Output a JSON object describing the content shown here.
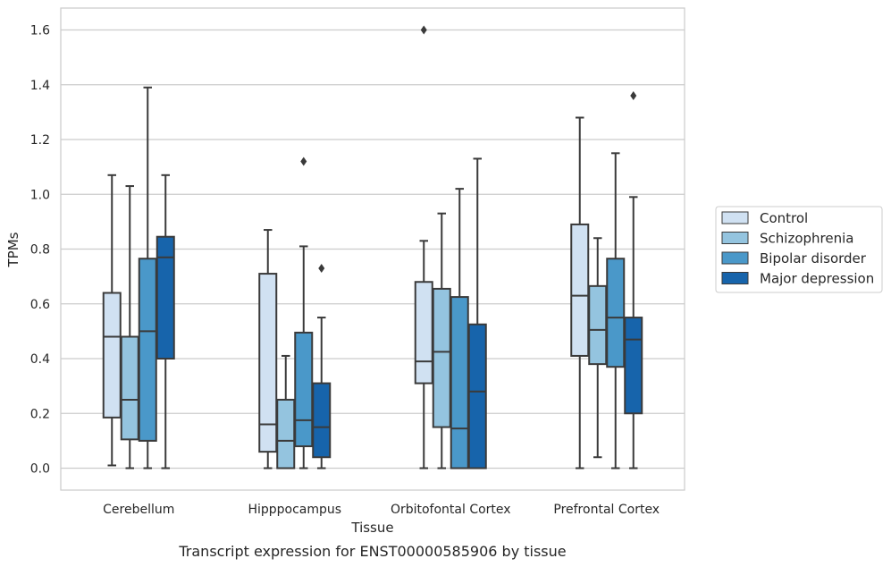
{
  "chart_data": {
    "type": "box",
    "xlabel": "Tissue",
    "ylabel": "TPMs",
    "caption": "Transcript expression for ENST00000585906 by tissue",
    "categories": [
      "Cerebellum",
      "Hipppocampus",
      "Orbitofontal Cortex",
      "Prefrontal Cortex"
    ],
    "ylim": [
      -0.08,
      1.68
    ],
    "yticks": [
      "0.0",
      "0.2",
      "0.4",
      "0.6",
      "0.8",
      "1.0",
      "1.2",
      "1.4",
      "1.6"
    ],
    "grid": "horizontal",
    "legend_position": "right",
    "series": [
      {
        "name": "Control",
        "color": "#d0e1f2",
        "boxes": [
          {
            "whislo": 0.01,
            "q1": 0.185,
            "med": 0.48,
            "q3": 0.64,
            "whishi": 1.07,
            "fliers": []
          },
          {
            "whislo": 0.0,
            "q1": 0.06,
            "med": 0.16,
            "q3": 0.71,
            "whishi": 0.87,
            "fliers": []
          },
          {
            "whislo": 0.0,
            "q1": 0.31,
            "med": 0.39,
            "q3": 0.68,
            "whishi": 0.83,
            "fliers": [
              1.6
            ]
          },
          {
            "whislo": 0.0,
            "q1": 0.41,
            "med": 0.63,
            "q3": 0.89,
            "whishi": 1.28,
            "fliers": []
          }
        ]
      },
      {
        "name": "Schizophrenia",
        "color": "#94c4df",
        "boxes": [
          {
            "whislo": 0.0,
            "q1": 0.105,
            "med": 0.25,
            "q3": 0.48,
            "whishi": 1.03,
            "fliers": []
          },
          {
            "whislo": 0.0,
            "q1": 0.0,
            "med": 0.1,
            "q3": 0.25,
            "whishi": 0.41,
            "fliers": []
          },
          {
            "whislo": 0.0,
            "q1": 0.15,
            "med": 0.425,
            "q3": 0.655,
            "whishi": 0.93,
            "fliers": []
          },
          {
            "whislo": 0.04,
            "q1": 0.38,
            "med": 0.505,
            "q3": 0.665,
            "whishi": 0.84,
            "fliers": []
          }
        ]
      },
      {
        "name": "Bipolar disorder",
        "color": "#4a98c9",
        "boxes": [
          {
            "whislo": 0.0,
            "q1": 0.1,
            "med": 0.5,
            "q3": 0.765,
            "whishi": 1.39,
            "fliers": []
          },
          {
            "whislo": 0.0,
            "q1": 0.08,
            "med": 0.175,
            "q3": 0.495,
            "whishi": 0.81,
            "fliers": [
              1.12
            ]
          },
          {
            "whislo": 0.0,
            "q1": 0.0,
            "med": 0.145,
            "q3": 0.625,
            "whishi": 1.02,
            "fliers": []
          },
          {
            "whislo": 0.0,
            "q1": 0.37,
            "med": 0.55,
            "q3": 0.765,
            "whishi": 1.15,
            "fliers": []
          }
        ]
      },
      {
        "name": "Major depression",
        "color": "#1764ab",
        "boxes": [
          {
            "whislo": 0.0,
            "q1": 0.4,
            "med": 0.77,
            "q3": 0.845,
            "whishi": 1.07,
            "fliers": []
          },
          {
            "whislo": 0.0,
            "q1": 0.04,
            "med": 0.15,
            "q3": 0.31,
            "whishi": 0.55,
            "fliers": [
              0.73
            ]
          },
          {
            "whislo": 0.0,
            "q1": 0.0,
            "med": 0.28,
            "q3": 0.525,
            "whishi": 1.13,
            "fliers": []
          },
          {
            "whislo": 0.0,
            "q1": 0.2,
            "med": 0.47,
            "q3": 0.55,
            "whishi": 0.99,
            "fliers": [
              1.36
            ]
          }
        ]
      }
    ]
  }
}
